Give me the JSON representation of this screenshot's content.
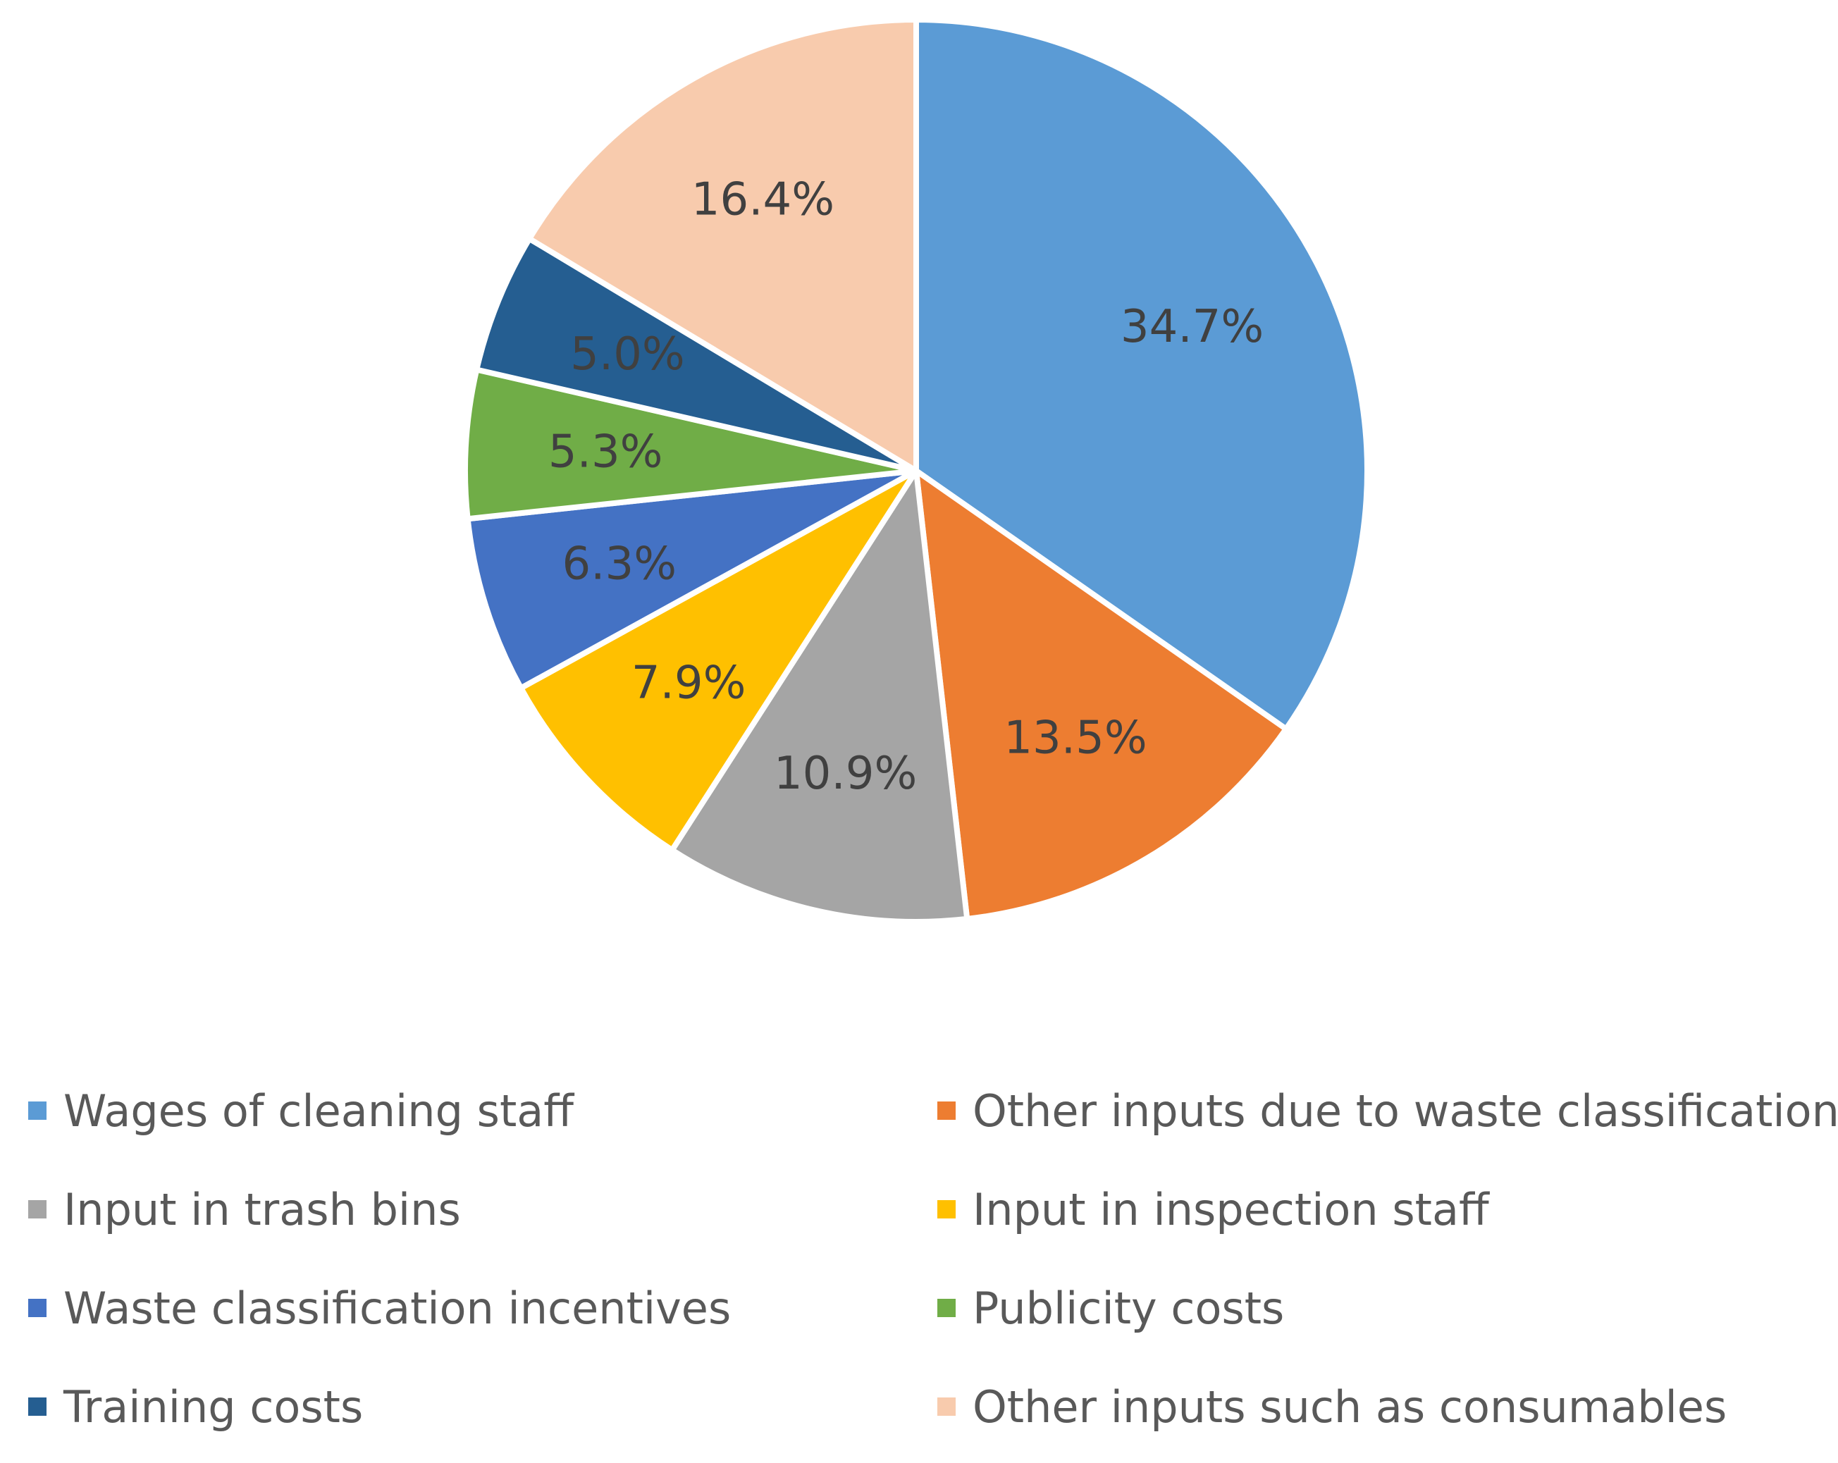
{
  "chart_data": {
    "type": "pie",
    "start_angle_deg": 0,
    "direction": "clockwise",
    "series": [
      {
        "label": "Wages of cleaning staff",
        "value": 34.7,
        "display": "34.7%",
        "color": "#5B9BD5"
      },
      {
        "label": "Other inputs due to waste classification",
        "value": 13.5,
        "display": "13.5%",
        "color": "#ED7D31"
      },
      {
        "label": "Input in trash bins",
        "value": 10.9,
        "display": "10.9%",
        "color": "#A5A5A5"
      },
      {
        "label": "Input in inspection staff",
        "value": 7.9,
        "display": "7.9%",
        "color": "#FFC000"
      },
      {
        "label": "Waste classification incentives",
        "value": 6.3,
        "display": "6.3%",
        "color": "#4472C4"
      },
      {
        "label": "Publicity costs",
        "value": 5.3,
        "display": "5.3%",
        "color": "#70AD47"
      },
      {
        "label": "Training costs",
        "value": 5.0,
        "display": "5.0%",
        "color": "#255E91"
      },
      {
        "label": "Other inputs such as consumables",
        "value": 16.4,
        "display": "16.4%",
        "color": "#F8CBAD"
      }
    ],
    "legend_position": "bottom",
    "legend_columns": 2
  }
}
